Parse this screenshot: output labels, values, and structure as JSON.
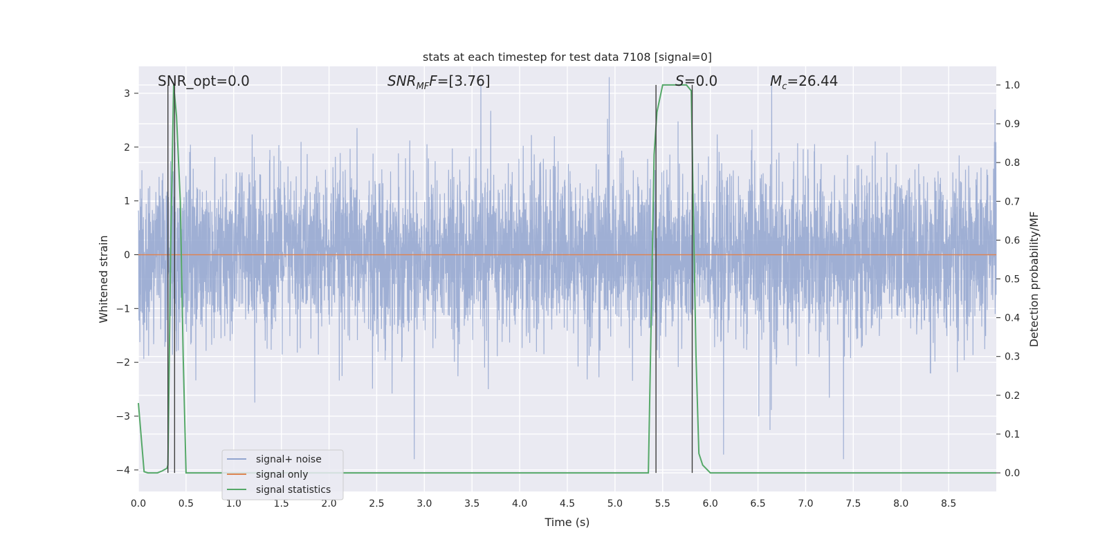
{
  "chart_data": {
    "type": "line",
    "title": "stats at each timestep for test data 7108 [signal=0]",
    "xlabel": "Time (s)",
    "ylabel": "Whitened strain",
    "y2label": "Detection probability/MF",
    "xlim": [
      0,
      9.0
    ],
    "ylim": [
      -4.4,
      3.5
    ],
    "y2lim": [
      -0.048,
      1.048
    ],
    "xticks": [
      0.0,
      0.5,
      1.0,
      1.5,
      2.0,
      2.5,
      3.0,
      3.5,
      4.0,
      4.5,
      5.0,
      5.5,
      6.0,
      6.5,
      7.0,
      7.5,
      8.0,
      8.5
    ],
    "xtick_labels": [
      "0.0",
      "0.5",
      "1.0",
      "1.5",
      "2.0",
      "2.5",
      "3.0",
      "3.5",
      "4.0",
      "4.5",
      "5.0",
      "5.5",
      "6.0",
      "6.5",
      "7.0",
      "7.5",
      "8.0",
      "8.5"
    ],
    "yticks": [
      3,
      2,
      1,
      0,
      -1,
      -2,
      -3,
      -4
    ],
    "ytick_labels": [
      "3",
      "2",
      "1",
      "0",
      "−1",
      "−2",
      "−3",
      "−4"
    ],
    "y2ticks": [
      1.0,
      0.9,
      0.8,
      0.7,
      0.6,
      0.5,
      0.4,
      0.3,
      0.2,
      0.1,
      0.0
    ],
    "y2tick_labels": [
      "1.0",
      "0.9",
      "0.8",
      "0.7",
      "0.6",
      "0.5",
      "0.4",
      "0.3",
      "0.2",
      "0.1",
      "0.0"
    ],
    "grid": true,
    "legend_position": "lower-left",
    "annotations": {
      "snr_opt": "SNR_opt=0.0",
      "snr_mf_main": "SNR",
      "snr_mf_sub": "MF",
      "snr_mf_value": "=[3.76]",
      "s_main": "S",
      "s_value": "=0.0",
      "mc_main": "M",
      "mc_sub": "c",
      "mc_value": "=26.44"
    },
    "vlines": [
      0.31,
      0.38,
      5.43,
      5.81
    ],
    "series": [
      {
        "name": "signal+ noise",
        "color": "#92a5cf",
        "kind": "noise",
        "approx_std": 0.75,
        "approx_range": [
          -3.8,
          3.3
        ]
      },
      {
        "name": "signal only",
        "color": "#dd8452",
        "kind": "constant",
        "value": 0.0
      },
      {
        "name": "signal statistics",
        "color": "#55a868",
        "axis": "right",
        "x": [
          0.0,
          0.06,
          0.1,
          0.15,
          0.2,
          0.25,
          0.3,
          0.31,
          0.34,
          0.37,
          0.4,
          0.44,
          0.47,
          0.5,
          0.6,
          1.0,
          2.0,
          3.0,
          4.0,
          5.0,
          5.35,
          5.38,
          5.41,
          5.44,
          5.5,
          5.6,
          5.7,
          5.75,
          5.8,
          5.82,
          5.85,
          5.88,
          5.92,
          6.0,
          7.0,
          8.0,
          9.0
        ],
        "y": [
          0.18,
          0.003,
          0.0,
          0.0,
          0.0,
          0.005,
          0.012,
          0.02,
          0.6,
          1.0,
          0.92,
          0.7,
          0.3,
          0.0,
          0.0,
          0.0,
          0.0,
          0.0,
          0.0,
          0.0,
          0.0,
          0.4,
          0.82,
          0.93,
          1.0,
          1.0,
          1.0,
          1.0,
          0.985,
          0.7,
          0.3,
          0.05,
          0.02,
          0.0,
          0.0,
          0.0,
          0.0
        ]
      }
    ]
  }
}
